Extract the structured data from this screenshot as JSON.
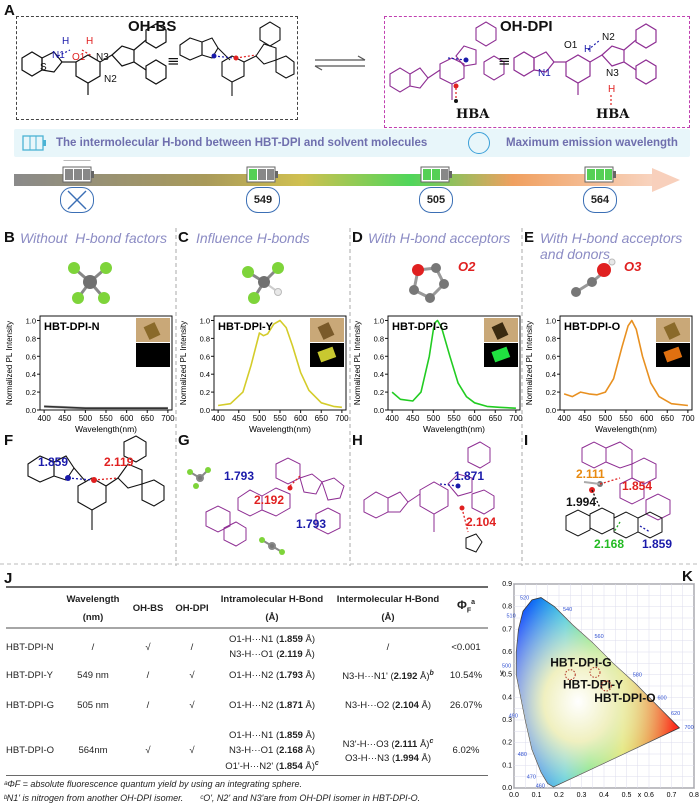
{
  "panels": {
    "A": "A",
    "B": "B",
    "C": "C",
    "D": "D",
    "E": "E",
    "F": "F",
    "G": "G",
    "H": "H",
    "I": "I",
    "J": "J",
    "K": "K"
  },
  "top": {
    "left_title": "OH-BS",
    "right_title": "OH-DPI",
    "equiv": "≡",
    "left_atoms": [
      "N1",
      "H",
      "O1",
      "H",
      "N3",
      "N2"
    ],
    "right_atoms": [
      "N1",
      "O1",
      "H",
      "N2",
      "N3",
      "H"
    ],
    "hba": "HBA"
  },
  "legend": {
    "hbond_text": "The intermolecular H-bond between HBT-DPI and solvent molecules",
    "max_em_text": "Maximum emission wavelength"
  },
  "arrow": {
    "values": [
      "549",
      "505",
      "564"
    ]
  },
  "conditions": [
    {
      "letter": "B",
      "title": "Without  H-bond factors",
      "solvent_label": "",
      "sample": "HBT-DPI-N"
    },
    {
      "letter": "C",
      "title": "Influence H-bonds",
      "solvent_label": "",
      "sample": "HBT-DPI-Y"
    },
    {
      "letter": "D",
      "title": "With H-bond acceptors",
      "solvent_label": "O2",
      "sample": "HBT-DPI-G"
    },
    {
      "letter": "E",
      "title": "With H-bond acceptors and donors",
      "solvent_label": "O3",
      "sample": "HBT-DPI-O"
    }
  ],
  "spectrum_axes": {
    "ylabel": "Normalized PL Intensity",
    "xlabel": "Wavelength(nm)",
    "xticks": [
      "400",
      "450",
      "500",
      "550",
      "600",
      "650",
      "700"
    ],
    "yticks": [
      "0.0",
      "0.2",
      "0.4",
      "0.6",
      "0.8",
      "1.0"
    ]
  },
  "chart_data": [
    {
      "type": "line",
      "title": "HBT-DPI-N",
      "xlabel": "Wavelength(nm)",
      "ylabel": "Normalized PL Intensity",
      "xlim": [
        390,
        710
      ],
      "ylim": [
        0,
        1.05
      ],
      "color": "#333333",
      "x": [
        400,
        450,
        500,
        550,
        600,
        650,
        700
      ],
      "y": [
        0.04,
        0.03,
        0.02,
        0.02,
        0.02,
        0.02,
        0.02
      ]
    },
    {
      "type": "line",
      "title": "HBT-DPI-Y",
      "xlabel": "Wavelength(nm)",
      "ylabel": "Normalized PL Intensity",
      "xlim": [
        390,
        710
      ],
      "ylim": [
        0,
        1.05
      ],
      "color": "#d4cc2a",
      "x": [
        400,
        430,
        460,
        480,
        500,
        510,
        520,
        535,
        550,
        565,
        580,
        600,
        620,
        650,
        680,
        700
      ],
      "y": [
        0.05,
        0.07,
        0.2,
        0.5,
        0.86,
        0.83,
        0.85,
        0.96,
        1.0,
        0.92,
        0.72,
        0.42,
        0.22,
        0.08,
        0.04,
        0.03
      ]
    },
    {
      "type": "line",
      "title": "HBT-DPI-G",
      "xlabel": "Wavelength(nm)",
      "ylabel": "Normalized PL Intensity",
      "xlim": [
        390,
        710
      ],
      "ylim": [
        0,
        1.05
      ],
      "color": "#22cc22",
      "x": [
        400,
        420,
        450,
        470,
        490,
        500,
        505,
        510,
        520,
        540,
        560,
        580,
        600,
        630,
        660,
        700
      ],
      "y": [
        0.2,
        0.12,
        0.1,
        0.2,
        0.6,
        0.9,
        0.98,
        1.0,
        0.92,
        0.6,
        0.3,
        0.15,
        0.08,
        0.04,
        0.03,
        0.02
      ]
    },
    {
      "type": "line",
      "title": "HBT-DPI-O",
      "xlabel": "Wavelength(nm)",
      "ylabel": "Normalized PL Intensity",
      "xlim": [
        390,
        710
      ],
      "ylim": [
        0,
        1.05
      ],
      "color": "#e89020",
      "x": [
        400,
        420,
        440,
        460,
        480,
        500,
        520,
        540,
        555,
        564,
        575,
        590,
        610,
        630,
        660,
        700
      ],
      "y": [
        0.18,
        0.15,
        0.2,
        0.18,
        0.17,
        0.2,
        0.35,
        0.7,
        0.94,
        1.0,
        0.9,
        0.6,
        0.3,
        0.15,
        0.07,
        0.05
      ]
    }
  ],
  "structures": {
    "F": {
      "blue": "1.859",
      "red": "2.119"
    },
    "G": {
      "blue1": "1.793",
      "red": "2.192",
      "blue2": "1.793"
    },
    "H": {
      "blue": "1.871",
      "red": "2.104"
    },
    "I": {
      "orange": "2.111",
      "red": "1.854",
      "black": "1.994",
      "green": "2.168",
      "blue": "1.859"
    }
  },
  "table": {
    "headers": {
      "wavelength": "Wavelength",
      "wl_unit": "(nm)",
      "bs": "OH-BS",
      "dpi": "OH-DPI",
      "intra": "Intramolecular H-Bond",
      "intra_unit": "(Å)",
      "inter": "Intermolecular H-Bond",
      "inter_unit": "(Å)",
      "phi": "Φ",
      "phi_sub": "F",
      "phi_sup": "a"
    },
    "rows": [
      {
        "name": "HBT-DPI-N",
        "wl": "/",
        "bs": "√",
        "dpi": "/",
        "intra": [
          [
            "O1-H···N1 (",
            "1.859",
            " Å)"
          ],
          [
            "N3-H···O1 (",
            "2.119",
            " Å)"
          ]
        ],
        "inter": [
          [
            "/",
            "",
            ""
          ]
        ],
        "inter_sup": "",
        "phi": "<0.001"
      },
      {
        "name": "HBT-DPI-Y",
        "wl": "549 nm",
        "bs": "/",
        "dpi": "√",
        "intra": [
          [
            "O1-H···N2 (",
            "1.793",
            " Å)"
          ]
        ],
        "inter": [
          [
            "N3-H···N1' (",
            "2.192",
            " Å)"
          ]
        ],
        "inter_sup": "b",
        "phi": "10.54%"
      },
      {
        "name": "HBT-DPI-G",
        "wl": "505 nm",
        "bs": "/",
        "dpi": "√",
        "intra": [
          [
            "O1-H···N2 (",
            "1.871",
            " Å)"
          ]
        ],
        "inter": [
          [
            "N3-H···O2 (",
            "2.104",
            " Å)"
          ]
        ],
        "inter_sup": "",
        "phi": "26.07%"
      },
      {
        "name": "HBT-DPI-O",
        "wl": "564nm",
        "bs": "√",
        "dpi": "√",
        "intra": [
          [
            "O1-H···N1 (",
            "1.859",
            " Å)"
          ],
          [
            "N3-H···O1 (",
            "2.168",
            " Å)"
          ],
          [
            "O1'-H···N2' (",
            "1.854",
            " Å)"
          ]
        ],
        "inter": [
          [
            "N3'-H···O3 (",
            "2.111",
            " Å)"
          ],
          [
            "O3-H···N3 (",
            "1.994",
            " Å)"
          ]
        ],
        "inter_sup": "c",
        "phi": "6.02%"
      }
    ],
    "footnotes": [
      "ᵃΦF = absolute fluorescence quantum yield by using an integrating sphere.",
      "ᵇN1' is nitrogen from another OH-DPI isomer.",
      "ᶜO', N2' and N3'are from OH-DPI isomer in HBT-DPI-O."
    ]
  },
  "cie": {
    "xlabel": "x",
    "ylabel": "y",
    "xticks": [
      "0.0",
      "0.1",
      "0.2",
      "0.3",
      "0.4",
      "0.5",
      "0.6",
      "0.7",
      "0.8"
    ],
    "yticks": [
      "0.0",
      "0.1",
      "0.2",
      "0.3",
      "0.4",
      "0.5",
      "0.6",
      "0.7",
      "0.8",
      "0.9"
    ],
    "wl_labels": [
      "460",
      "470",
      "480",
      "490",
      "500",
      "510",
      "520",
      "540",
      "560",
      "580",
      "600",
      "620",
      "700"
    ],
    "points": [
      {
        "name": "HBT-DPI-G",
        "x": 0.25,
        "y": 0.5
      },
      {
        "name": "HBT-DPI-Y",
        "x": 0.36,
        "y": 0.51
      },
      {
        "name": "HBT-DPI-O",
        "x": 0.41,
        "y": 0.45
      }
    ]
  },
  "colors": {
    "purple": "#8e2e93",
    "blue": "#2233cc",
    "red": "#e02020",
    "box_left": "#444444",
    "box_right": "#c040b0",
    "title_purple": "#8c8cc4"
  }
}
